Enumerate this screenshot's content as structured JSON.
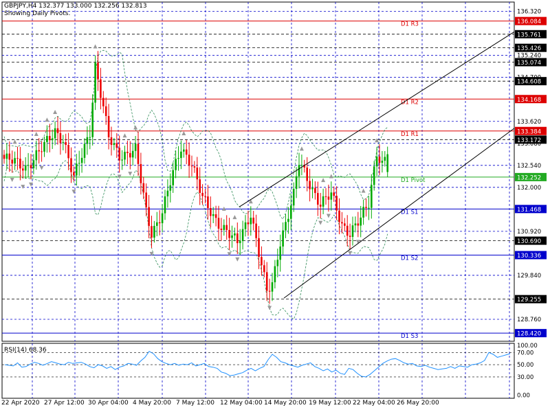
{
  "header": {
    "symbol_line": "GBPJPY,H4  132.377 133.000 132.256 132.813",
    "subtitle": "Showing Daily Pivots."
  },
  "rsi_label": "RSI(14) 68.36",
  "colors": {
    "background": "#ffffff",
    "grid": "#0000cc",
    "bull": "#00aa00",
    "bear": "#ee0000",
    "resistance": "#dd0000",
    "support": "#0000cc",
    "pivot": "#22aa22",
    "band": "#2e8b57",
    "rsi_line": "#1e90ff",
    "level_dash": "#000000",
    "trend": "#000000",
    "fractal": "#999999"
  },
  "chart_data": [
    {
      "type": "candlestick",
      "title": "GBPJPY,H4",
      "ylim": [
        128.22,
        136.55
      ],
      "ytick_labels": [
        "136.320",
        "135.240",
        "134.700",
        "133.620",
        "133.080",
        "132.540",
        "132.000",
        "130.920",
        "129.840",
        "128.760"
      ],
      "ytick_values": [
        136.32,
        135.24,
        134.7,
        133.62,
        133.08,
        132.54,
        132.0,
        130.92,
        129.84,
        128.76
      ],
      "xtick_labels": [
        "22 Apr 2020",
        "27 Apr 12:00",
        "30 Apr 04:00",
        "4 May 20:00",
        "7 May 12:00",
        "12 May 04:00",
        "14 May 20:00",
        "19 May 12:00",
        "22 May 04:00",
        "26 May 20:00"
      ],
      "grid": true,
      "pivot_levels": [
        {
          "name": "D1 R3",
          "value": 136.084,
          "label": "136.084",
          "kind": "resistance"
        },
        {
          "name": "D1 R2",
          "value": 134.168,
          "label": "134.168",
          "kind": "resistance"
        },
        {
          "name": "D1 R1",
          "value": 133.384,
          "label": "133.384",
          "kind": "resistance"
        },
        {
          "name": "D1 Pivot",
          "value": 132.252,
          "label": "132.252",
          "kind": "pivot"
        },
        {
          "name": "D1 S1",
          "value": 131.468,
          "label": "131.468",
          "kind": "support"
        },
        {
          "name": "D1 S2",
          "value": 130.336,
          "label": "130.336",
          "kind": "support"
        },
        {
          "name": "D1 S3",
          "value": 128.42,
          "label": "128.420",
          "kind": "support"
        }
      ],
      "price_levels": [
        {
          "value": 135.761,
          "label": "135.761"
        },
        {
          "value": 135.426,
          "label": "135.426"
        },
        {
          "value": 135.074,
          "label": "135.074"
        },
        {
          "value": 134.608,
          "label": "134.608"
        },
        {
          "value": 133.172,
          "label": "133.172"
        },
        {
          "value": 130.69,
          "label": "130.690"
        },
        {
          "value": 129.255,
          "label": "129.255"
        }
      ],
      "trend_lines": [
        {
          "start": {
            "x": "12 May 04:00",
            "y": 131.52
          },
          "end": {
            "x": "27 May 12:00",
            "y": 135.82
          }
        },
        {
          "start": {
            "x": "14 May 20:00",
            "y": 129.28
          },
          "end": {
            "x": "27 May 12:00",
            "y": 133.45
          }
        }
      ],
      "candle_path": [
        {
          "at": 0,
          "price": 132.7
        },
        {
          "at": 8,
          "price": 132.5
        },
        {
          "at": 15,
          "price": 133.0
        },
        {
          "at": 19,
          "price": 133.4
        },
        {
          "at": 22,
          "price": 133.2
        },
        {
          "at": 26,
          "price": 132.2
        },
        {
          "at": 28,
          "price": 132.6
        },
        {
          "at": 32,
          "price": 133.4
        },
        {
          "at": 34,
          "price": 135.0
        },
        {
          "at": 36,
          "price": 134.3
        },
        {
          "at": 39,
          "price": 133.2
        },
        {
          "at": 43,
          "price": 132.8
        },
        {
          "at": 49,
          "price": 132.9
        },
        {
          "at": 53,
          "price": 131.4
        },
        {
          "at": 55,
          "price": 130.9
        },
        {
          "at": 59,
          "price": 131.4
        },
        {
          "at": 62,
          "price": 132.1
        },
        {
          "at": 66,
          "price": 133.0
        },
        {
          "at": 70,
          "price": 132.6
        },
        {
          "at": 74,
          "price": 131.7
        },
        {
          "at": 78,
          "price": 131.3
        },
        {
          "at": 82,
          "price": 131.0
        },
        {
          "at": 87,
          "price": 130.6
        },
        {
          "at": 92,
          "price": 131.4
        },
        {
          "at": 95,
          "price": 130.4
        },
        {
          "at": 98,
          "price": 129.4
        },
        {
          "at": 100,
          "price": 129.6
        },
        {
          "at": 103,
          "price": 130.7
        },
        {
          "at": 108,
          "price": 131.8
        },
        {
          "at": 110,
          "price": 132.6
        },
        {
          "at": 114,
          "price": 132.1
        },
        {
          "at": 118,
          "price": 131.6
        },
        {
          "at": 122,
          "price": 131.8
        },
        {
          "at": 126,
          "price": 131.1
        },
        {
          "at": 129,
          "price": 130.9
        },
        {
          "at": 133,
          "price": 131.2
        },
        {
          "at": 136,
          "price": 131.6
        },
        {
          "at": 139,
          "price": 132.9
        },
        {
          "at": 141,
          "price": 132.6
        },
        {
          "at": 143,
          "price": 132.8
        }
      ],
      "candle_count": 144,
      "last_candle": {
        "open": 132.377,
        "high": 133.0,
        "low": 132.256,
        "close": 132.813
      }
    },
    {
      "type": "line",
      "title": "RSI(14)",
      "ylim": [
        -5,
        85
      ],
      "ytick_labels": [
        "100.00",
        "70.00",
        "50.00",
        "30.00",
        "0.00"
      ],
      "ytick_values": [
        100,
        70,
        50,
        30,
        0
      ],
      "levels": [
        70,
        50,
        30
      ],
      "series": [
        {
          "name": "RSI(14)",
          "values": [
            50,
            49,
            48,
            53,
            46,
            47,
            51,
            54,
            52,
            49,
            52,
            55,
            53,
            51,
            50,
            54,
            52,
            53,
            54,
            51,
            47,
            45,
            50,
            48,
            44,
            47,
            42,
            46,
            48,
            52,
            51,
            49,
            56,
            62,
            72,
            68,
            60,
            55,
            52,
            50,
            52,
            49,
            51,
            50,
            53,
            48,
            50,
            52,
            47,
            46,
            44,
            38,
            36,
            32,
            33,
            35,
            37,
            41,
            44,
            40,
            44,
            47,
            58,
            67,
            62,
            55,
            53,
            50,
            48,
            46,
            49,
            51,
            53,
            47,
            44,
            40,
            43,
            38,
            41,
            36,
            34,
            44,
            42,
            36,
            31,
            30,
            34,
            40,
            46,
            52,
            56,
            59,
            60,
            57,
            53,
            51,
            52,
            48,
            47,
            49,
            46,
            44,
            42,
            43,
            44,
            47,
            44,
            48,
            47,
            46,
            50,
            51,
            53,
            57,
            70,
            67,
            62,
            64,
            66,
            68
          ]
        }
      ]
    }
  ]
}
